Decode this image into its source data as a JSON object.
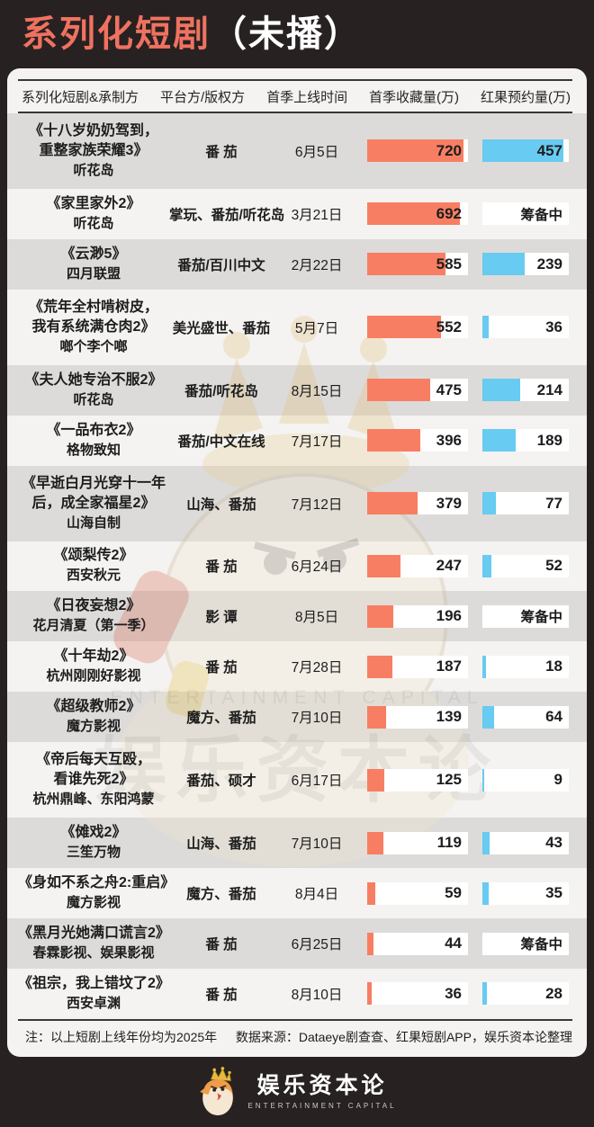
{
  "header": {
    "title_main": "系列化短剧",
    "title_paren": "（未播）",
    "accent_color": "#EF7260"
  },
  "table": {
    "columns": [
      "系列化短剧&承制方",
      "平台方/版权方",
      "首季上线时间",
      "首季收藏量(万)",
      "红果预约量(万)"
    ],
    "bar_max": {
      "favorites": 755,
      "reservations": 490
    },
    "bar_colors": {
      "favorites": "#F87E63",
      "reservations": "#68CBF1"
    },
    "pending_label": "筹备中",
    "rows": [
      {
        "title_lines": [
          "《十八岁奶奶驾到，",
          "重整家族荣耀3》"
        ],
        "producer": "听花岛",
        "platform": "番 茄",
        "date": "6月5日",
        "favorites": "720",
        "reservations": "457"
      },
      {
        "title_lines": [
          "《家里家外2》"
        ],
        "producer": "听花岛",
        "platform": "掌玩、番茄/听花岛",
        "date": "3月21日",
        "favorites": "692",
        "reservations": "筹备中"
      },
      {
        "title_lines": [
          "《云渺5》"
        ],
        "producer": "四月联盟",
        "platform": "番茄/百川中文",
        "date": "2月22日",
        "favorites": "585",
        "reservations": "239"
      },
      {
        "title_lines": [
          "《荒年全村啃树皮，",
          "我有系统满仓肉2》"
        ],
        "producer": "啷个李个啷",
        "platform": "美光盛世、番茄",
        "date": "5月7日",
        "favorites": "552",
        "reservations": "36"
      },
      {
        "title_lines": [
          "《夫人她专治不服2》"
        ],
        "producer": "听花岛",
        "platform": "番茄/听花岛",
        "date": "8月15日",
        "favorites": "475",
        "reservations": "214"
      },
      {
        "title_lines": [
          "《一品布衣2》"
        ],
        "producer": "格物致知",
        "platform": "番茄/中文在线",
        "date": "7月17日",
        "favorites": "396",
        "reservations": "189"
      },
      {
        "title_lines": [
          "《早逝白月光穿十一年",
          "后，成全家福星2》"
        ],
        "producer": "山海自制",
        "platform": "山海、番茄",
        "date": "7月12日",
        "favorites": "379",
        "reservations": "77"
      },
      {
        "title_lines": [
          "《颂梨传2》"
        ],
        "producer": "西安秋元",
        "platform": "番 茄",
        "date": "6月24日",
        "favorites": "247",
        "reservations": "52"
      },
      {
        "title_lines": [
          "《日夜妄想2》"
        ],
        "producer": "花月清夏（第一季）",
        "platform": "影 谭",
        "date": "8月5日",
        "favorites": "196",
        "reservations": "筹备中"
      },
      {
        "title_lines": [
          "《十年劫2》"
        ],
        "producer": "杭州刚刚好影视",
        "platform": "番 茄",
        "date": "7月28日",
        "favorites": "187",
        "reservations": "18"
      },
      {
        "title_lines": [
          "《超级教师2》"
        ],
        "producer": "魔方影视",
        "platform": "魔方、番茄",
        "date": "7月10日",
        "favorites": "139",
        "reservations": "64"
      },
      {
        "title_lines": [
          "《帝后每天互殴，",
          "看谁先死2》"
        ],
        "producer": "杭州鼎峰、东阳鸿蒙",
        "platform": "番茄、硕才",
        "date": "6月17日",
        "favorites": "125",
        "reservations": "9"
      },
      {
        "title_lines": [
          "《傩戏2》"
        ],
        "producer": "三笙万物",
        "platform": "山海、番茄",
        "date": "7月10日",
        "favorites": "119",
        "reservations": "43"
      },
      {
        "title_lines": [
          "《身如不系之舟2:重启》"
        ],
        "producer": "魔方影视",
        "platform": "魔方、番茄",
        "date": "8月4日",
        "favorites": "59",
        "reservations": "35"
      },
      {
        "title_lines": [
          "《黑月光她满口谎言2》"
        ],
        "producer": "春霖影视、娱果影视",
        "platform": "番 茄",
        "date": "6月25日",
        "favorites": "44",
        "reservations": "筹备中"
      },
      {
        "title_lines": [
          "《祖宗，我上错坟了2》"
        ],
        "producer": "西安卓渊",
        "platform": "番 茄",
        "date": "8月10日",
        "favorites": "36",
        "reservations": "28"
      }
    ]
  },
  "chart_data": {
    "type": "bar",
    "title": "系列化短剧（未播）",
    "categories": [
      "《十八岁奶奶驾到，重整家族荣耀3》",
      "《家里家外2》",
      "《云渺5》",
      "《荒年全村啃树皮，我有系统满仓肉2》",
      "《夫人她专治不服2》",
      "《一品布衣2》",
      "《早逝白月光穿十一年后，成全家福星2》",
      "《颂梨传2》",
      "《日夜妄想2》",
      "《十年劫2》",
      "《超级教师2》",
      "《帝后每天互殴，看谁先死2》",
      "《傩戏2》",
      "《身如不系之舟2:重启》",
      "《黑月光她满口谎言2》",
      "《祖宗，我上错坟了2》"
    ],
    "series": [
      {
        "name": "首季收藏量(万)",
        "color": "#F87E63",
        "values": [
          720,
          692,
          585,
          552,
          475,
          396,
          379,
          247,
          196,
          187,
          139,
          125,
          119,
          59,
          44,
          36
        ]
      },
      {
        "name": "红果预约量(万)",
        "color": "#68CBF1",
        "values": [
          457,
          "筹备中",
          239,
          36,
          214,
          189,
          77,
          52,
          "筹备中",
          18,
          64,
          9,
          43,
          35,
          "筹备中",
          28
        ]
      }
    ],
    "xlim_favorites": [
      0,
      755
    ],
    "xlim_reservations": [
      0,
      490
    ],
    "orientation": "horizontal",
    "legend_position": "column-headers"
  },
  "watermark": {
    "en": "ENTERTAINMENT CAPITAL",
    "cn": "娱乐资本论"
  },
  "footnote": {
    "note": "注：以上短剧上线年份均为2025年",
    "source": "数据来源：Dataeye剧查查、红果短剧APP，娱乐资本论整理"
  },
  "footer": {
    "brand_cn": "娱乐资本论",
    "brand_en": "ENTERTAINMENT CAPITAL"
  }
}
